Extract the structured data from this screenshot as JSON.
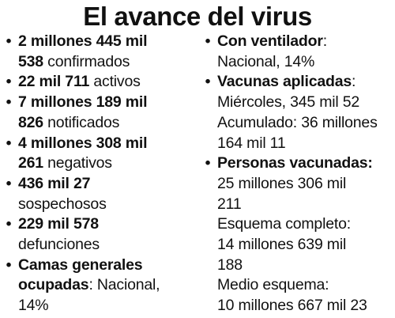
{
  "title": "El avance del virus",
  "bullet": "•",
  "left_items": [
    {
      "value": "2 millones 445 mil",
      "value2": "538",
      "label": "confirmados"
    },
    {
      "value": "22 mil 711",
      "label": "activos"
    },
    {
      "value": "7 millones 189 mil",
      "value2": "826",
      "label": "notificados"
    },
    {
      "value": "4 millones 308 mil",
      "value2": "261",
      "label": "negativos"
    },
    {
      "value": "436 mil 27",
      "label": "sospechosos"
    },
    {
      "value": "229 mil 578",
      "label": "defunciones"
    },
    {
      "value": "Camas generales",
      "value2": "ocupadas",
      "label": ": Nacional,",
      "label2": "14%"
    }
  ],
  "right_items": [
    {
      "heading": "Con ventilador",
      "colon": ":",
      "line2": "Nacional, 14%"
    },
    {
      "heading": "Vacunas aplicadas",
      "colon": ":",
      "lines": [
        "Miércoles, 345 mil 52",
        "Acumulado: 36 millones",
        "164 mil 11"
      ]
    },
    {
      "heading": "Personas vacunadas:",
      "lines": [
        "25 millones 306 mil",
        "211",
        "Esquema completo:",
        "14 millones 639 mil",
        "188",
        "Medio esquema:",
        "10 millones 667 mil 23"
      ]
    }
  ]
}
